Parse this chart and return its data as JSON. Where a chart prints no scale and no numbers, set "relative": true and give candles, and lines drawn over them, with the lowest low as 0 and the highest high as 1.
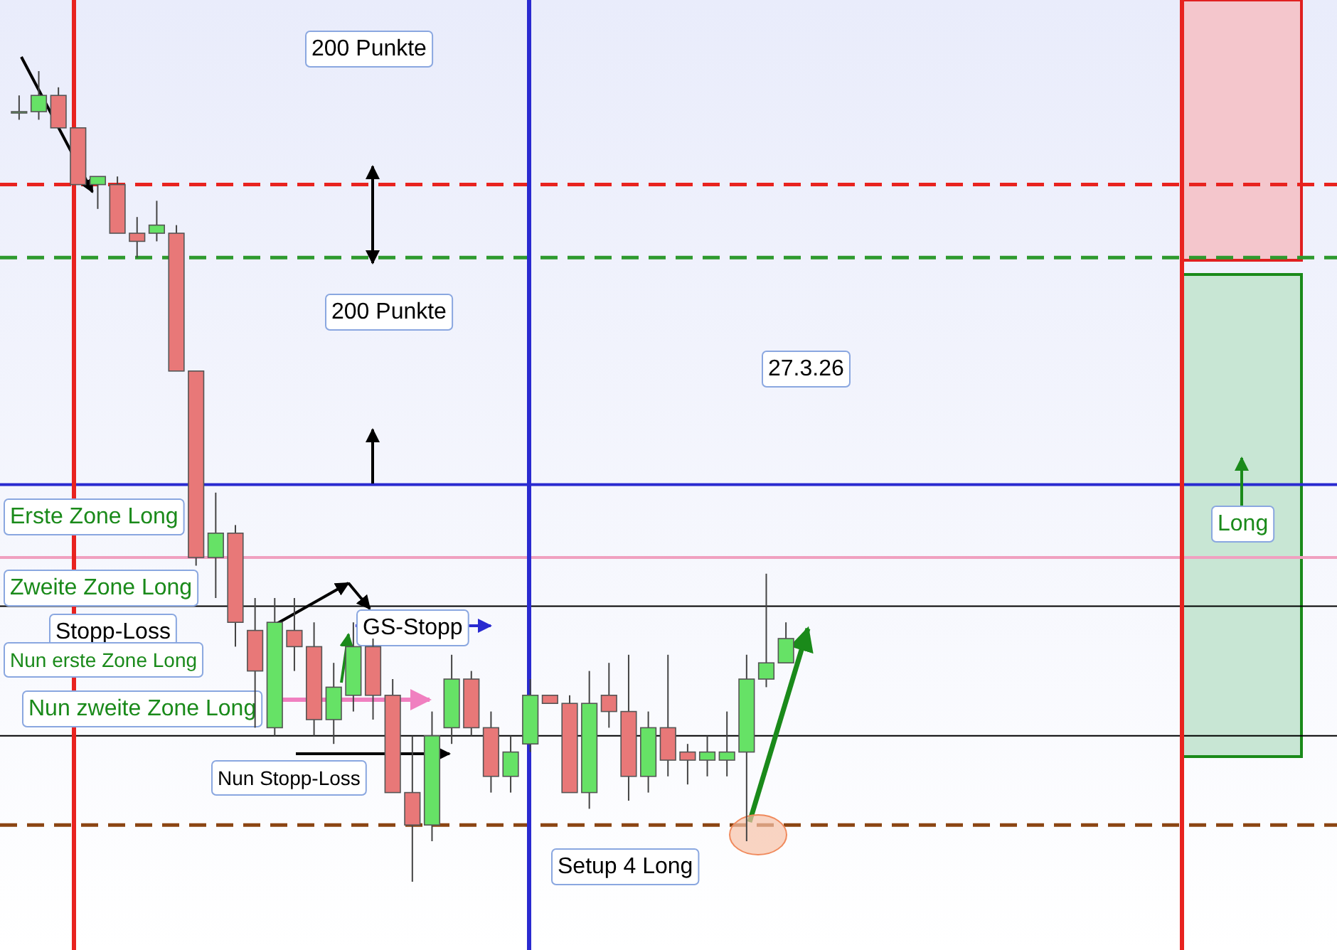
{
  "chart_data": {
    "type": "candlestick",
    "relative": true,
    "categories": [
      null,
      null,
      null,
      null,
      null,
      null,
      null,
      null,
      null,
      null,
      null,
      null,
      null,
      null,
      null,
      null,
      null,
      null,
      null,
      null,
      null,
      null,
      null,
      null,
      null,
      null,
      null,
      null,
      null,
      null,
      null,
      null,
      null,
      null,
      null,
      null,
      null,
      null,
      null,
      null
    ],
    "ohlc": [
      [
        0.95,
        0.97,
        0.94,
        0.95
      ],
      [
        0.95,
        1.0,
        0.94,
        0.97
      ],
      [
        0.97,
        0.98,
        0.93,
        0.93
      ],
      [
        0.93,
        0.93,
        0.86,
        0.86
      ],
      [
        0.86,
        0.87,
        0.83,
        0.87
      ],
      [
        0.86,
        0.87,
        0.8,
        0.8
      ],
      [
        0.8,
        0.82,
        0.77,
        0.79
      ],
      [
        0.8,
        0.84,
        0.79,
        0.81
      ],
      [
        0.8,
        0.81,
        0.63,
        0.63
      ],
      [
        0.63,
        0.63,
        0.39,
        0.4
      ],
      [
        0.4,
        0.48,
        0.35,
        0.43
      ],
      [
        0.43,
        0.44,
        0.29,
        0.32
      ],
      [
        0.31,
        0.35,
        0.19,
        0.26
      ],
      [
        0.19,
        0.35,
        0.18,
        0.32
      ],
      [
        0.31,
        0.35,
        0.26,
        0.29
      ],
      [
        0.29,
        0.32,
        0.18,
        0.2
      ],
      [
        0.2,
        0.27,
        0.17,
        0.24
      ],
      [
        0.23,
        0.32,
        0.21,
        0.29
      ],
      [
        0.29,
        0.3,
        0.2,
        0.23
      ],
      [
        0.23,
        0.25,
        0.11,
        0.11
      ],
      [
        0.11,
        0.18,
        0.0,
        0.07
      ],
      [
        0.07,
        0.21,
        0.05,
        0.18
      ],
      [
        0.19,
        0.28,
        0.17,
        0.25
      ],
      [
        0.25,
        0.26,
        0.18,
        0.19
      ],
      [
        0.19,
        0.21,
        0.11,
        0.13
      ],
      [
        0.13,
        0.18,
        0.11,
        0.16
      ],
      [
        0.17,
        0.25,
        0.16,
        0.23
      ],
      [
        0.23,
        0.23,
        0.22,
        0.22
      ],
      [
        0.22,
        0.23,
        0.11,
        0.11
      ],
      [
        0.11,
        0.26,
        0.09,
        0.22
      ],
      [
        0.23,
        0.27,
        0.19,
        0.21
      ],
      [
        0.21,
        0.28,
        0.1,
        0.13
      ],
      [
        0.13,
        0.21,
        0.11,
        0.19
      ],
      [
        0.19,
        0.28,
        0.13,
        0.15
      ],
      [
        0.16,
        0.17,
        0.12,
        0.15
      ],
      [
        0.15,
        0.18,
        0.13,
        0.16
      ],
      [
        0.15,
        0.21,
        0.13,
        0.16
      ],
      [
        0.16,
        0.28,
        0.05,
        0.25
      ],
      [
        0.25,
        0.38,
        0.24,
        0.27
      ],
      [
        0.27,
        0.32,
        0.27,
        0.3
      ]
    ],
    "ref_lines": [
      {
        "axis": "y",
        "value": 0.86,
        "color": "#e8231f",
        "line_style": "dashed"
      },
      {
        "axis": "y",
        "value": 0.77,
        "color": "#2e9a2e",
        "line_style": "dashed"
      },
      {
        "axis": "y",
        "value": 0.49,
        "color": "#2a2ad0",
        "line_style": "solid"
      },
      {
        "axis": "y",
        "value": 0.4,
        "color": "#f0a0c0",
        "line_style": "solid"
      },
      {
        "axis": "y",
        "value": 0.34,
        "color": "#000000",
        "line_style": "solid"
      },
      {
        "axis": "y",
        "value": 0.18,
        "color": "#000000",
        "line_style": "solid"
      },
      {
        "axis": "y",
        "value": 0.07,
        "color": "#8b4513",
        "line_style": "dashed"
      }
    ],
    "annotations": [
      "200 Punkte",
      "200 Punkte",
      "27.3.26",
      "Erste Zone Long",
      "Zweite Zone Long",
      "Stopp-Loss",
      "GS-Stopp",
      "Nun erste Zone Long",
      "Nun zweite Zone Long",
      "Nun Stopp-Loss",
      "Setup 4 Long",
      "Long"
    ]
  }
}
